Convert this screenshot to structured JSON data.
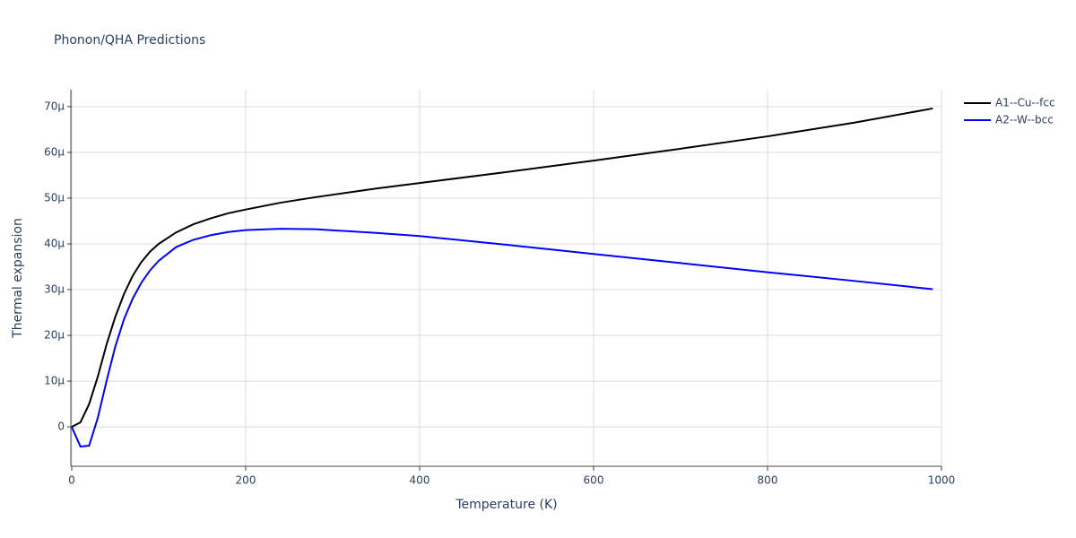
{
  "chart_data": {
    "type": "line",
    "title": "Phonon/QHA Predictions",
    "x_label": "Temperature (K)",
    "y_label": "Thermal expansion",
    "x": [
      0,
      10,
      20,
      30,
      40,
      50,
      60,
      70,
      80,
      90,
      100,
      120,
      140,
      160,
      180,
      200,
      240,
      280,
      350,
      400,
      500,
      600,
      700,
      800,
      900,
      990
    ],
    "series": [
      {
        "name": "A1--Cu--fcc",
        "color": "#000000",
        "values": [
          0,
          1e-06,
          5e-06,
          1.1e-05,
          1.8e-05,
          2.4e-05,
          2.9e-05,
          3.3e-05,
          3.6e-05,
          3.83e-05,
          4e-05,
          4.25e-05,
          4.43e-05,
          4.56e-05,
          4.67e-05,
          4.75e-05,
          4.9e-05,
          5.02e-05,
          5.21e-05,
          5.33e-05,
          5.57e-05,
          5.82e-05,
          6.08e-05,
          6.35e-05,
          6.65e-05,
          6.96e-05
        ]
      },
      {
        "name": "A2--W--bcc",
        "color": "#0000ff",
        "values": [
          0,
          -4.3e-06,
          -4.1e-06,
          2e-06,
          1e-05,
          1.75e-05,
          2.35e-05,
          2.8e-05,
          3.15e-05,
          3.42e-05,
          3.63e-05,
          3.93e-05,
          4.09e-05,
          4.19e-05,
          4.26e-05,
          4.3e-05,
          4.33e-05,
          4.32e-05,
          4.24e-05,
          4.17e-05,
          3.98e-05,
          3.78e-05,
          3.58e-05,
          3.38e-05,
          3.19e-05,
          3.01e-05
        ]
      }
    ],
    "xlim": [
      0,
      1000
    ],
    "xticks": [
      0,
      200,
      400,
      600,
      800,
      1000
    ],
    "ylim": [
      -8.6e-06,
      7.37e-05
    ],
    "yticks": [
      0,
      {
        "value": 1e-05,
        "label": "10µ"
      },
      {
        "value": 2e-05,
        "label": "20µ"
      },
      {
        "value": 3e-05,
        "label": "30µ"
      },
      {
        "value": 4e-05,
        "label": "40µ"
      },
      {
        "value": 5e-05,
        "label": "50µ"
      },
      {
        "value": 6e-05,
        "label": "60µ"
      },
      {
        "value": 7e-05,
        "label": "70µ"
      }
    ],
    "grid": true,
    "legend": "top-right"
  }
}
